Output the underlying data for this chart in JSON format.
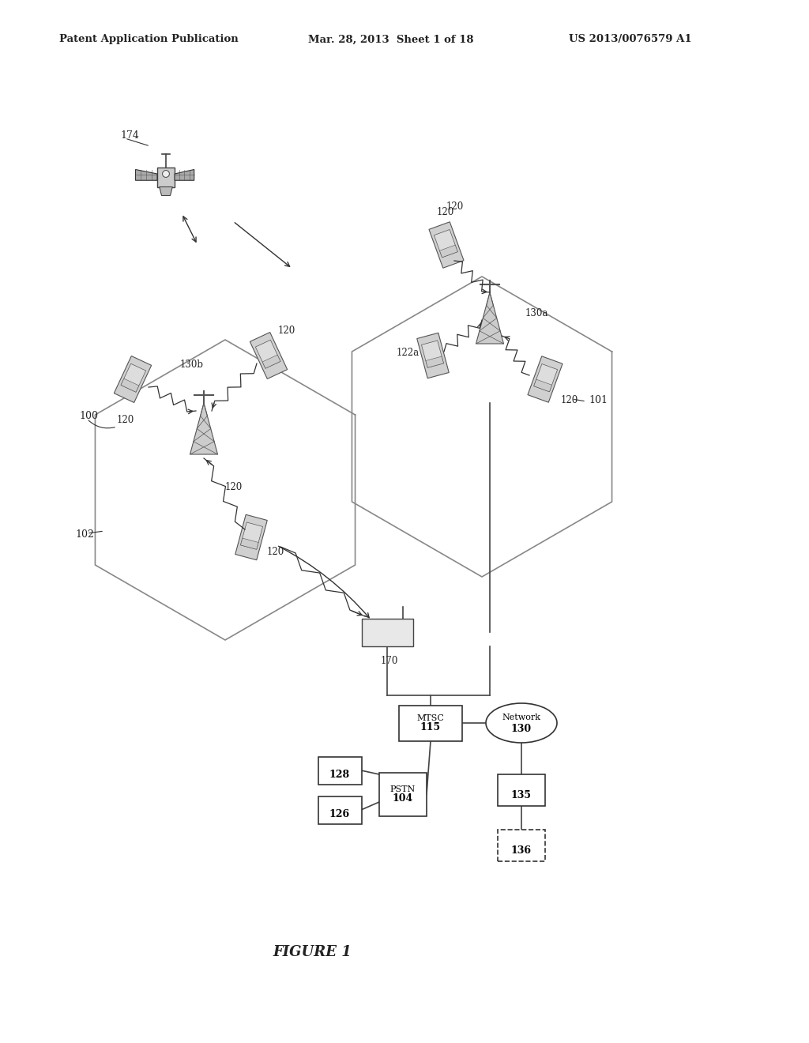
{
  "bg_color": "#ffffff",
  "header_text": "Patent Application Publication",
  "header_date": "Mar. 28, 2013  Sheet 1 of 18",
  "header_patent": "US 2013/0076579 A1",
  "figure_label": "FIGURE 1",
  "label_color": "#222222",
  "figsize": [
    10.24,
    13.2
  ],
  "dpi": 100
}
